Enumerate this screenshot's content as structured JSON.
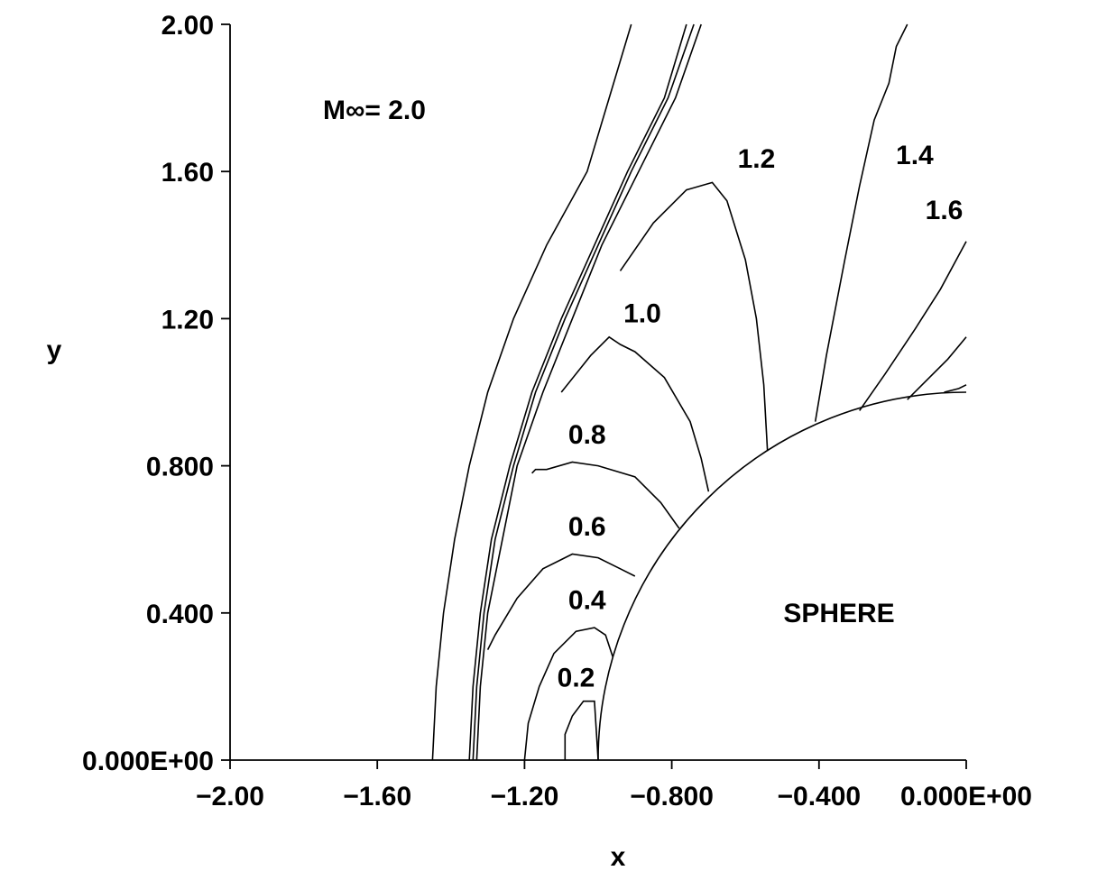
{
  "chart_data": {
    "type": "line",
    "title": "",
    "xlabel": "x",
    "ylabel": "y",
    "xlim": [
      -2.0,
      0.0
    ],
    "ylim": [
      0.0,
      2.0
    ],
    "x_ticks": [
      -2.0,
      -1.6,
      -1.2,
      -0.8,
      -0.4,
      0.0
    ],
    "x_tick_labels": [
      "−2.00",
      "−1.60",
      "−1.20",
      "−0.800",
      "−0.400",
      "0.000E+00"
    ],
    "y_ticks": [
      0.0,
      0.4,
      0.8,
      1.2,
      1.6,
      2.0
    ],
    "y_tick_labels": [
      "0.000E+00",
      "0.400",
      "0.800",
      "1.20",
      "1.60",
      "2.00"
    ],
    "annotations": {
      "mach": "M∞= 2.0",
      "body": "SPHERE"
    },
    "body": {
      "name": "SPHERE",
      "shape": "circle",
      "center": [
        0.0,
        0.0
      ],
      "radius": 1.0
    },
    "series": [
      {
        "name": "",
        "label_at": null,
        "x": [
          -1.45,
          -1.44,
          -1.42,
          -1.39,
          -1.35,
          -1.3,
          -1.23,
          -1.14,
          -1.03,
          -0.91
        ],
        "y": [
          0.0,
          0.2,
          0.4,
          0.6,
          0.8,
          1.0,
          1.2,
          1.4,
          1.6,
          2.0
        ]
      },
      {
        "name": "",
        "label_at": null,
        "x": [
          -1.35,
          -1.34,
          -1.32,
          -1.29,
          -1.24,
          -1.18,
          -1.1,
          -1.01,
          -0.92,
          -0.82,
          -0.76
        ],
        "y": [
          0.0,
          0.2,
          0.4,
          0.6,
          0.8,
          1.0,
          1.2,
          1.4,
          1.6,
          1.8,
          2.0
        ]
      },
      {
        "name": "",
        "label_at": null,
        "x": [
          -1.34,
          -1.33,
          -1.31,
          -1.28,
          -1.23,
          -1.17,
          -1.09,
          -1.0,
          -0.91,
          -0.81,
          -0.74
        ],
        "y": [
          0.0,
          0.2,
          0.4,
          0.6,
          0.8,
          1.0,
          1.2,
          1.4,
          1.6,
          1.8,
          2.0
        ]
      },
      {
        "name": "",
        "label_at": null,
        "x": [
          -1.33,
          -1.32,
          -1.3,
          -1.26,
          -1.22,
          -1.15,
          -1.07,
          -0.99,
          -0.89,
          -0.79,
          -0.72
        ],
        "y": [
          0.0,
          0.2,
          0.4,
          0.6,
          0.8,
          1.0,
          1.2,
          1.4,
          1.6,
          1.8,
          2.0
        ]
      },
      {
        "name": "0.2",
        "label_at": [
          -1.06,
          0.2
        ],
        "x": [
          -1.09,
          -1.09,
          -1.07,
          -1.04,
          -1.01,
          -1.0
        ],
        "y": [
          0.0,
          0.07,
          0.12,
          0.16,
          0.16,
          0.0
        ]
      },
      {
        "name": "0.4",
        "label_at": [
          -1.03,
          0.41
        ],
        "x": [
          -1.2,
          -1.19,
          -1.16,
          -1.12,
          -1.06,
          -1.01,
          -0.98,
          -0.96
        ],
        "y": [
          0.0,
          0.1,
          0.2,
          0.29,
          0.35,
          0.36,
          0.34,
          0.28
        ]
      },
      {
        "name": "0.6",
        "label_at": [
          -1.03,
          0.61
        ],
        "x": [
          -1.3,
          -1.28,
          -1.22,
          -1.15,
          -1.07,
          -1.0,
          -0.94,
          -0.9
        ],
        "y": [
          0.3,
          0.34,
          0.44,
          0.52,
          0.56,
          0.55,
          0.52,
          0.5
        ]
      },
      {
        "name": "0.8",
        "label_at": [
          -1.03,
          0.86
        ],
        "x": [
          -1.18,
          -1.17,
          -1.14,
          -1.07,
          -1.0,
          -0.9,
          -0.83,
          -0.78
        ],
        "y": [
          0.78,
          0.79,
          0.79,
          0.81,
          0.8,
          0.77,
          0.7,
          0.63
        ]
      },
      {
        "name": "1.0",
        "label_at": [
          -0.88,
          1.19
        ],
        "x": [
          -1.1,
          -1.02,
          -0.97,
          -0.94,
          -0.9,
          -0.82,
          -0.75,
          -0.72,
          -0.7
        ],
        "y": [
          1.0,
          1.1,
          1.15,
          1.13,
          1.11,
          1.04,
          0.92,
          0.82,
          0.73
        ]
      },
      {
        "name": "1.2",
        "label_at": [
          -0.57,
          1.61
        ],
        "x": [
          -0.94,
          -0.85,
          -0.76,
          -0.69,
          -0.65,
          -0.6,
          -0.57,
          -0.55,
          -0.54
        ],
        "y": [
          1.33,
          1.46,
          1.55,
          1.57,
          1.52,
          1.36,
          1.2,
          1.02,
          0.84
        ]
      },
      {
        "name": "1.4",
        "label_at": [
          -0.14,
          1.62
        ],
        "x": [
          -0.41,
          -0.38,
          -0.33,
          -0.29,
          -0.25,
          -0.21,
          -0.19,
          -0.16
        ],
        "y": [
          0.92,
          1.1,
          1.36,
          1.56,
          1.74,
          1.84,
          1.94,
          2.0
        ]
      },
      {
        "name": "1.6",
        "label_at": [
          -0.06,
          1.47
        ],
        "x": [
          -0.29,
          -0.22,
          -0.14,
          -0.07,
          0.0
        ],
        "y": [
          0.95,
          1.05,
          1.17,
          1.28,
          1.41
        ]
      },
      {
        "name": "",
        "label_at": null,
        "x": [
          -0.16,
          -0.1,
          -0.05,
          0.0
        ],
        "y": [
          0.98,
          1.04,
          1.09,
          1.15
        ]
      },
      {
        "name": "",
        "label_at": null,
        "x": [
          -0.06,
          -0.02,
          0.0
        ],
        "y": [
          1.0,
          1.01,
          1.02
        ]
      }
    ]
  }
}
